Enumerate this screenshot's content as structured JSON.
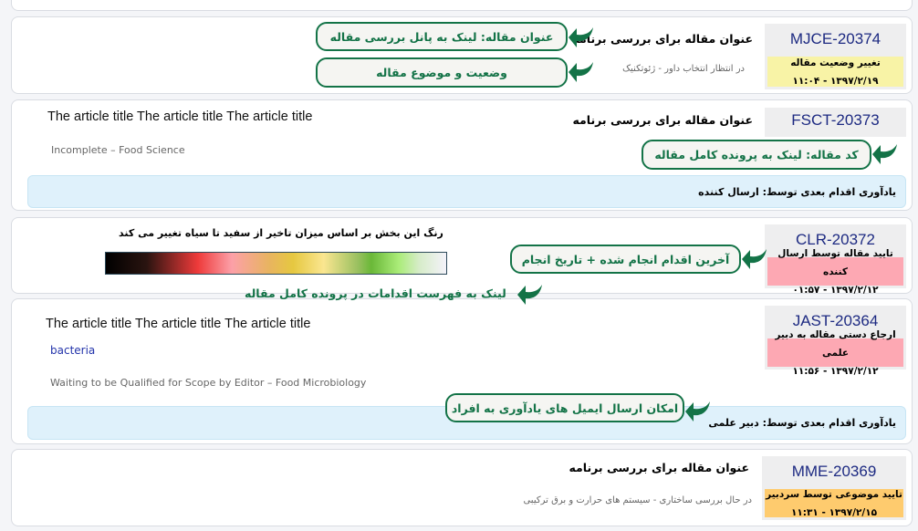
{
  "colors": {
    "accent": "#137347",
    "code": "#1d2a82",
    "yellow": "#f8f3a6",
    "pink": "#fda8b3",
    "orange": "#fecb6e",
    "reminder": "#dff1fb"
  },
  "articles": [
    {
      "code": "MJCE-20374",
      "fa_title": "عنوان مقاله برای بررسی برنامه",
      "subtitle": "در انتظار انتخاب داور - ژئوتکنیک",
      "status": "تغییر وضعیت مقاله",
      "date": "۱۳۹۷/۲/۱۹ - ۱۱:۰۴"
    },
    {
      "code": "FSCT-20373",
      "fa_title": "عنوان مقاله برای بررسی برنامه",
      "en_title": "The article title The article title The article title",
      "subtitle": "Incomplete – Food Science",
      "reminder": "یادآوری اقدام بعدی توسط: ارسال کننده"
    },
    {
      "code": "CLR-20372",
      "status": "تایید مقاله توسط ارسال کننده",
      "date": "۱۳۹۷/۲/۱۲ - ۰۱:۵۷",
      "legend_text": "رنگ این بخش بر اساس میزان تاخیر از سفید تا سیاه تغییر می کند"
    },
    {
      "code": "JAST-20364",
      "en_title": "The article title The article title The article title",
      "keyword": "bacteria",
      "subtitle": "Waiting to be Qualified for Scope by Editor – Food Microbiology",
      "status": "ارجاع دستی مقاله به دبیر علمی",
      "date": "۱۳۹۷/۲/۱۲ - ۱۱:۵۶",
      "reminder": "یادآوری اقدام بعدی توسط: دبیر علمی"
    },
    {
      "code": "MME-20369",
      "fa_title": "عنوان مقاله برای بررسی برنامه",
      "subtitle": "در حال بررسی ساختاری - سیستم های حرارت و برق ترکیبی",
      "status": "تایید موضوعی توسط سردبیر",
      "date": "۱۳۹۷/۲/۱۵ - ۱۱:۳۱"
    }
  ],
  "callouts": {
    "title_link": "عنوان مقاله: لینک به پانل بررسی مقاله",
    "status_subject": "وضعیت و موضوع مقاله",
    "code_link": "کد مقاله: لینک به پرونده کامل مقاله",
    "last_action": "آخرین اقدام انجام شده + تاریخ انجام",
    "actions_link": "لینک به فهرست اقدامات در پرونده کامل مقاله",
    "reminder_email": "امکان ارسال ایمیل های یادآوری به افراد"
  }
}
